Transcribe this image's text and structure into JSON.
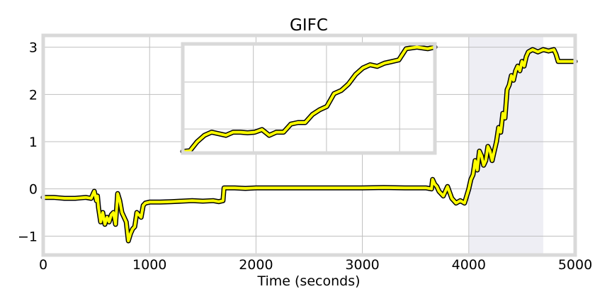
{
  "chart_data": {
    "type": "line",
    "title": "GIFC",
    "xlabel": "Time (seconds)",
    "ylabel": "",
    "xlim": [
      0,
      5000
    ],
    "ylim": [
      -1.4,
      3.25
    ],
    "xticks": [
      0,
      1000,
      2000,
      3000,
      4000,
      5000
    ],
    "xtick_labels": [
      "0",
      "1000",
      "2000",
      "3000",
      "4000",
      "5000"
    ],
    "yticks": [
      -1,
      0,
      1,
      2,
      3
    ],
    "ytick_labels": [
      "−1",
      "0",
      "1",
      "2",
      "3"
    ],
    "grid": true,
    "shaded_region": [
      4000,
      4700
    ],
    "colors": {
      "line_fill": "#ffff00",
      "line_edge": "#000000",
      "shade": "#eeeef4",
      "frame": "#d9d9d9",
      "grid": "#bfbfbf"
    },
    "series": [
      {
        "x": [
          0,
          100,
          200,
          300,
          400,
          450,
          480,
          500,
          510,
          520,
          540,
          560,
          580,
          600,
          620,
          640,
          660,
          680,
          700,
          720,
          740,
          760,
          780,
          800,
          820,
          840,
          860,
          880,
          900,
          920,
          940,
          960,
          1000,
          1100,
          1200,
          1300,
          1400,
          1500,
          1600,
          1650,
          1690,
          1700,
          1720,
          1800,
          1900,
          2000,
          2200,
          2400,
          2600,
          2800,
          3000,
          3200,
          3400,
          3600,
          3650,
          3660,
          3680,
          3700,
          3720,
          3760,
          3800,
          3840,
          3880,
          3920,
          3960,
          4000,
          4020,
          4040,
          4060,
          4080,
          4100,
          4120,
          4140,
          4160,
          4180,
          4200,
          4220,
          4240,
          4260,
          4280,
          4300,
          4320,
          4340,
          4360,
          4380,
          4400,
          4420,
          4440,
          4460,
          4480,
          4500,
          4520,
          4540,
          4560,
          4600,
          4650,
          4700,
          4750,
          4800,
          4820,
          4840,
          4860,
          4900,
          5000
        ],
        "y": [
          -0.18,
          -0.18,
          -0.2,
          -0.2,
          -0.18,
          -0.2,
          -0.05,
          -0.25,
          -0.15,
          -0.4,
          -0.7,
          -0.5,
          -0.75,
          -0.6,
          -0.7,
          -0.55,
          -0.5,
          -0.75,
          -0.1,
          -0.25,
          -0.5,
          -0.6,
          -0.7,
          -1.1,
          -0.95,
          -0.85,
          -0.8,
          -0.5,
          -0.55,
          -0.6,
          -0.35,
          -0.3,
          -0.28,
          -0.28,
          -0.27,
          -0.26,
          -0.25,
          -0.26,
          -0.25,
          -0.27,
          -0.25,
          0.02,
          0.02,
          0.02,
          0.01,
          0.02,
          0.02,
          0.02,
          0.02,
          0.02,
          0.02,
          0.03,
          0.02,
          0.02,
          0.0,
          0.2,
          0.1,
          0.05,
          -0.05,
          -0.15,
          0.05,
          -0.2,
          -0.3,
          -0.25,
          -0.3,
          0.0,
          0.2,
          0.3,
          0.6,
          0.4,
          0.8,
          0.7,
          0.5,
          0.6,
          0.9,
          0.8,
          0.6,
          0.8,
          1.0,
          1.3,
          1.2,
          1.6,
          1.5,
          2.1,
          2.2,
          2.4,
          2.3,
          2.5,
          2.6,
          2.5,
          2.7,
          2.6,
          2.8,
          2.9,
          2.95,
          2.9,
          2.95,
          2.92,
          2.95,
          2.85,
          2.7,
          2.7,
          2.7,
          2.7
        ]
      }
    ],
    "inset": {
      "xlim": [
        4000,
        4700
      ],
      "ylim": [
        -0.35,
        3.05
      ],
      "x": [
        4000,
        4020,
        4040,
        4060,
        4080,
        4100,
        4120,
        4140,
        4160,
        4180,
        4200,
        4220,
        4240,
        4260,
        4280,
        4300,
        4320,
        4340,
        4360,
        4380,
        4400,
        4420,
        4440,
        4460,
        4480,
        4500,
        4520,
        4540,
        4560,
        4580,
        4600,
        4620,
        4650,
        4680,
        4700
      ],
      "y": [
        -0.3,
        -0.28,
        0.0,
        0.2,
        0.3,
        0.25,
        0.2,
        0.3,
        0.3,
        0.28,
        0.3,
        0.38,
        0.2,
        0.3,
        0.3,
        0.55,
        0.6,
        0.6,
        0.85,
        1.0,
        1.1,
        1.5,
        1.6,
        1.8,
        2.1,
        2.3,
        2.4,
        2.35,
        2.45,
        2.5,
        2.55,
        2.9,
        2.95,
        2.9,
        2.95
      ]
    }
  }
}
